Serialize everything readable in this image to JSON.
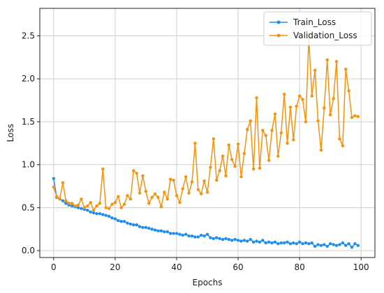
{
  "chart_data": {
    "type": "line",
    "title": "",
    "xlabel": "Epochs",
    "ylabel": "Loss",
    "xlim": [
      -4.5,
      104.5
    ],
    "ylim": [
      -0.08,
      2.82
    ],
    "xticks": [
      0,
      20,
      40,
      60,
      80,
      100
    ],
    "yticks": [
      0.0,
      0.5,
      1.0,
      1.5,
      2.0,
      2.5
    ],
    "xtick_labels": [
      "0",
      "20",
      "40",
      "60",
      "80",
      "100"
    ],
    "ytick_labels": [
      "0.0",
      "0.5",
      "1.0",
      "1.5",
      "2.0",
      "2.5"
    ],
    "grid": true,
    "legend_position": "top-right",
    "series": [
      {
        "name": "Train_Loss",
        "color": "#1f8ef1",
        "marker": "circle",
        "x": [
          0,
          1,
          2,
          3,
          4,
          5,
          6,
          7,
          8,
          9,
          10,
          11,
          12,
          13,
          14,
          15,
          16,
          17,
          18,
          19,
          20,
          21,
          22,
          23,
          24,
          25,
          26,
          27,
          28,
          29,
          30,
          31,
          32,
          33,
          34,
          35,
          36,
          37,
          38,
          39,
          40,
          41,
          42,
          43,
          44,
          45,
          46,
          47,
          48,
          49,
          50,
          51,
          52,
          53,
          54,
          55,
          56,
          57,
          58,
          59,
          60,
          61,
          62,
          63,
          64,
          65,
          66,
          67,
          68,
          69,
          70,
          71,
          72,
          73,
          74,
          75,
          76,
          77,
          78,
          79,
          80,
          81,
          82,
          83,
          84,
          85,
          86,
          87,
          88,
          89,
          90,
          91,
          92,
          93,
          94,
          95,
          96,
          97,
          98,
          99
        ],
        "values": [
          0.84,
          0.62,
          0.6,
          0.58,
          0.55,
          0.53,
          0.52,
          0.51,
          0.5,
          0.49,
          0.48,
          0.47,
          0.45,
          0.44,
          0.43,
          0.43,
          0.42,
          0.41,
          0.4,
          0.38,
          0.37,
          0.35,
          0.34,
          0.34,
          0.32,
          0.31,
          0.3,
          0.3,
          0.28,
          0.27,
          0.27,
          0.26,
          0.25,
          0.24,
          0.23,
          0.23,
          0.22,
          0.22,
          0.2,
          0.2,
          0.2,
          0.19,
          0.18,
          0.19,
          0.17,
          0.17,
          0.16,
          0.16,
          0.18,
          0.17,
          0.19,
          0.15,
          0.14,
          0.15,
          0.14,
          0.13,
          0.14,
          0.13,
          0.12,
          0.13,
          0.12,
          0.11,
          0.12,
          0.11,
          0.13,
          0.1,
          0.11,
          0.1,
          0.12,
          0.09,
          0.1,
          0.09,
          0.1,
          0.08,
          0.09,
          0.09,
          0.1,
          0.08,
          0.09,
          0.08,
          0.1,
          0.08,
          0.09,
          0.08,
          0.09,
          0.05,
          0.07,
          0.06,
          0.07,
          0.05,
          0.08,
          0.07,
          0.06,
          0.07,
          0.09,
          0.06,
          0.08,
          0.04,
          0.08,
          0.06
        ]
      },
      {
        "name": "Validation_Loss",
        "color": "#f5930c",
        "marker": "circle",
        "x": [
          0,
          1,
          2,
          3,
          4,
          5,
          6,
          7,
          8,
          9,
          10,
          11,
          12,
          13,
          14,
          15,
          16,
          17,
          18,
          19,
          20,
          21,
          22,
          23,
          24,
          25,
          26,
          27,
          28,
          29,
          30,
          31,
          32,
          33,
          34,
          35,
          36,
          37,
          38,
          39,
          40,
          41,
          42,
          43,
          44,
          45,
          46,
          47,
          48,
          49,
          50,
          51,
          52,
          53,
          54,
          55,
          56,
          57,
          58,
          59,
          60,
          61,
          62,
          63,
          64,
          65,
          66,
          67,
          68,
          69,
          70,
          71,
          72,
          73,
          74,
          75,
          76,
          77,
          78,
          79,
          80,
          81,
          82,
          83,
          84,
          85,
          86,
          87,
          88,
          89,
          90,
          91,
          92,
          93,
          94,
          95,
          96,
          97,
          98,
          99
        ],
        "values": [
          0.74,
          0.63,
          0.6,
          0.79,
          0.58,
          0.55,
          0.55,
          0.52,
          0.53,
          0.6,
          0.5,
          0.52,
          0.56,
          0.47,
          0.52,
          0.55,
          0.95,
          0.5,
          0.49,
          0.54,
          0.56,
          0.63,
          0.5,
          0.54,
          0.64,
          0.6,
          0.93,
          0.9,
          0.67,
          0.87,
          0.69,
          0.55,
          0.62,
          0.66,
          0.62,
          0.51,
          0.68,
          0.6,
          0.83,
          0.82,
          0.64,
          0.56,
          0.72,
          0.86,
          0.67,
          0.8,
          1.25,
          0.71,
          0.66,
          0.81,
          0.68,
          0.97,
          1.3,
          0.82,
          0.93,
          1.1,
          0.87,
          1.23,
          1.06,
          0.98,
          1.24,
          0.86,
          1.13,
          1.41,
          1.51,
          0.95,
          1.78,
          0.96,
          1.4,
          1.34,
          1.05,
          1.4,
          1.59,
          1.1,
          1.37,
          1.82,
          1.25,
          1.67,
          1.29,
          1.68,
          1.8,
          1.76,
          1.5,
          2.47,
          1.8,
          2.1,
          1.51,
          1.17,
          1.66,
          2.22,
          1.58,
          1.77,
          2.2,
          1.3,
          1.22,
          2.11,
          1.86,
          1.55,
          1.57,
          1.56
        ]
      }
    ]
  }
}
